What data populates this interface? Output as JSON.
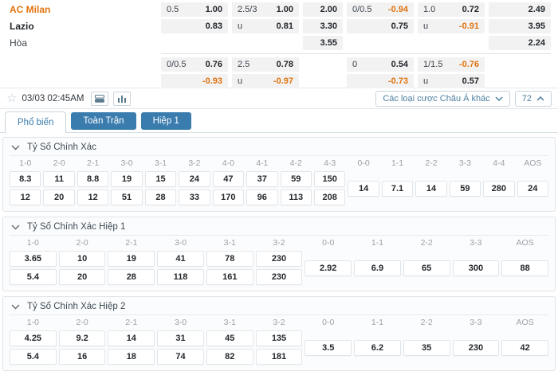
{
  "colors": {
    "blue": "#3a7cae",
    "orange": "#e1730f",
    "link_blue": "#4d7fa0"
  },
  "match": {
    "home": "AC Milan",
    "away": "Lazio",
    "draw": "Hòa"
  },
  "top_odds": {
    "block1": [
      [
        {
          "l": "0.5",
          "v": "1.00"
        },
        {
          "l": "2.5/3",
          "v": "1.00"
        },
        {
          "v": "2.00"
        },
        {
          "l": "0/0.5",
          "v": "-0.94",
          "neg": true
        },
        {
          "l": "1.0",
          "v": "0.72"
        },
        {
          "v": "2.49"
        }
      ],
      [
        {
          "l": "",
          "v": "0.83"
        },
        {
          "l": "u",
          "v": "0.81"
        },
        {
          "v": "3.30"
        },
        {
          "l": "",
          "v": "0.75"
        },
        {
          "l": "u",
          "v": "-0.91",
          "neg": true
        },
        {
          "v": "3.95"
        }
      ],
      [
        null,
        null,
        {
          "v": "3.55"
        },
        null,
        null,
        {
          "v": "2.24"
        }
      ]
    ],
    "block2": [
      [
        {
          "l": "0/0.5",
          "v": "0.76"
        },
        {
          "l": "2.5",
          "v": "0.78"
        },
        null,
        {
          "l": "0",
          "v": "0.54"
        },
        {
          "l": "1/1.5",
          "v": "-0.76",
          "neg": true
        },
        null
      ],
      [
        {
          "l": "",
          "v": "-0.93",
          "neg": true
        },
        {
          "l": "u",
          "v": "-0.97",
          "neg": true
        },
        null,
        {
          "l": "",
          "v": "-0.73",
          "neg": true
        },
        {
          "l": "u",
          "v": "0.57"
        },
        null
      ]
    ]
  },
  "toolbar": {
    "datetime": "03/03 02:45AM",
    "asian_markets_label": "Các loại cược Châu Á khác",
    "markets_count": "72"
  },
  "tabs": [
    {
      "label": "Phổ biến",
      "active": true
    },
    {
      "label": "Toàn Trận",
      "active": false
    },
    {
      "label": "Hiệp 1",
      "active": false
    }
  ],
  "sections": [
    {
      "title": "Tỷ Số Chính Xác",
      "score_cols": [
        "1-0",
        "2-0",
        "2-1",
        "3-0",
        "3-1",
        "3-2",
        "4-0",
        "4-1",
        "4-2",
        "4-3"
      ],
      "row1": [
        "8.3",
        "11",
        "8.8",
        "19",
        "15",
        "24",
        "47",
        "37",
        "59",
        "150"
      ],
      "row2": [
        "12",
        "20",
        "12",
        "51",
        "28",
        "33",
        "170",
        "96",
        "113",
        "208"
      ],
      "draw_cols": [
        "0-0",
        "1-1",
        "2-2",
        "3-3",
        "4-4",
        "AOS"
      ],
      "draw_vals": [
        "14",
        "7.1",
        "14",
        "59",
        "280",
        "24"
      ]
    },
    {
      "title": "Tỷ Số Chính Xác Hiệp 1",
      "score_cols": [
        "1-0",
        "2-0",
        "2-1",
        "3-0",
        "3-1",
        "3-2"
      ],
      "row1": [
        "3.65",
        "10",
        "19",
        "41",
        "78",
        "230"
      ],
      "row2": [
        "5.4",
        "20",
        "28",
        "118",
        "161",
        "230"
      ],
      "draw_cols": [
        "0-0",
        "1-1",
        "2-2",
        "3-3",
        "AOS"
      ],
      "draw_vals": [
        "2.92",
        "6.9",
        "65",
        "300",
        "88"
      ]
    },
    {
      "title": "Tỷ Số Chính Xác Hiệp 2",
      "score_cols": [
        "1-0",
        "2-0",
        "2-1",
        "3-0",
        "3-1",
        "3-2"
      ],
      "row1": [
        "4.25",
        "9.2",
        "14",
        "31",
        "45",
        "135"
      ],
      "row2": [
        "5.4",
        "16",
        "18",
        "74",
        "82",
        "181"
      ],
      "draw_cols": [
        "0-0",
        "1-1",
        "2-2",
        "3-3",
        "AOS"
      ],
      "draw_vals": [
        "3.5",
        "6.2",
        "35",
        "230",
        "42"
      ]
    }
  ]
}
